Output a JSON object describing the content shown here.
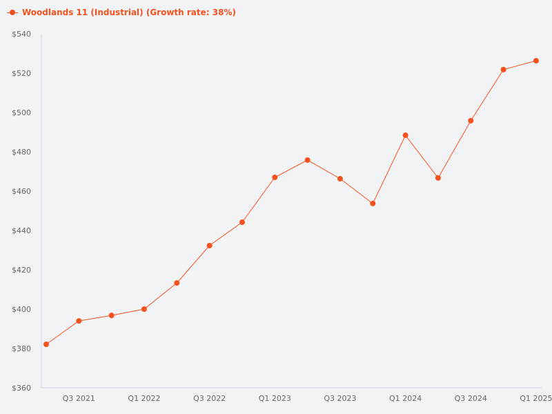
{
  "chart_data": {
    "type": "line",
    "title": "",
    "legend": {
      "position": "top-left",
      "entries": [
        "Woodlands 11 (Industrial) (Growth rate: 38%)"
      ]
    },
    "x": [
      "Q2 2021",
      "Q3 2021",
      "Q4 2021",
      "Q1 2022",
      "Q2 2022",
      "Q3 2022",
      "Q4 2022",
      "Q1 2023",
      "Q2 2023",
      "Q3 2023",
      "Q4 2023",
      "Q1 2024",
      "Q2 2024",
      "Q3 2024",
      "Q4 2024",
      "Q1 2025"
    ],
    "series": [
      {
        "name": "Woodlands 11 (Industrial) (Growth rate: 38%)",
        "color": "#f4511e",
        "values": [
          382.1,
          394.0,
          396.8,
          400.0,
          413.3,
          432.3,
          444.2,
          467.0,
          475.8,
          466.3,
          453.7,
          488.4,
          466.7,
          495.8,
          521.8,
          526.3
        ]
      }
    ],
    "xlabel": "",
    "ylabel": "",
    "ylim": [
      360,
      540
    ],
    "y_ticks": [
      360,
      380,
      400,
      420,
      440,
      460,
      480,
      500,
      520,
      540
    ],
    "y_tick_labels": [
      "$360",
      "$380",
      "$400",
      "$420",
      "$440",
      "$460",
      "$480",
      "$500",
      "$520",
      "$540"
    ],
    "x_tick_labels": [
      "Q3 2021",
      "Q1 2022",
      "Q3 2022",
      "Q1 2023",
      "Q3 2023",
      "Q1 2024",
      "Q3 2024",
      "Q1 2025"
    ],
    "grid": false
  },
  "legend": {
    "label": "Woodlands 11 (Industrial) (Growth rate: 38%)"
  }
}
